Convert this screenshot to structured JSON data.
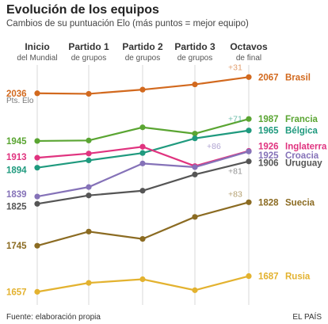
{
  "chart_data": {
    "type": "line",
    "title": "Evolución de los equipos",
    "subtitle": "Cambios de su puntuación Elo (más puntos = mejor equipo)",
    "x_stages": [
      {
        "main": "Inicio",
        "sub": "del Mundial"
      },
      {
        "main": "Partido 1",
        "sub": "de grupos"
      },
      {
        "main": "Partido 2",
        "sub": "de grupos"
      },
      {
        "main": "Partido 3",
        "sub": "de grupos"
      },
      {
        "main": "Octavos",
        "sub": "de final"
      }
    ],
    "y_unit_label": "Pts. Elo",
    "ylim": [
      1650,
      2075
    ],
    "grid": false,
    "series": [
      {
        "name": "Brasil",
        "color": "#d2691e",
        "values": [
          2036,
          2035,
          2043,
          2053,
          2067
        ],
        "start_label": "2036",
        "end_label": "2067",
        "gain_label": "+31"
      },
      {
        "name": "Francia",
        "color": "#5aa532",
        "values": [
          1945,
          1946,
          1971,
          1959,
          1987
        ],
        "start_label": "1945",
        "end_label": "1987",
        "gain_label": ""
      },
      {
        "name": "Bélgica",
        "color": "#1f9a7e",
        "values": [
          1894,
          1908,
          1922,
          1950,
          1965
        ],
        "start_label": "1894",
        "end_label": "1965",
        "gain_label": "+71"
      },
      {
        "name": "Inglaterra",
        "color": "#e0337f",
        "values": [
          1913,
          1921,
          1934,
          1897,
          1926
        ],
        "start_label": "1913",
        "end_label": "1926",
        "gain_label": ""
      },
      {
        "name": "Croacia",
        "color": "#8572b8",
        "values": [
          1839,
          1857,
          1902,
          1895,
          1925
        ],
        "start_label": "1839",
        "end_label": "1925",
        "gain_label": "+86"
      },
      {
        "name": "Uruguay",
        "color": "#555555",
        "values": [
          1825,
          1841,
          1850,
          1881,
          1906
        ],
        "start_label": "1825",
        "end_label": "1906",
        "gain_label": "+81"
      },
      {
        "name": "Suecia",
        "color": "#8b6b22",
        "values": [
          1745,
          1772,
          1758,
          1800,
          1828
        ],
        "start_label": "1745",
        "end_label": "1828",
        "gain_label": "+83"
      },
      {
        "name": "Rusia",
        "color": "#e3b22f",
        "values": [
          1657,
          1674,
          1681,
          1660,
          1687
        ],
        "start_label": "1657",
        "end_label": "1687",
        "gain_label": ""
      }
    ],
    "footer_source": "Fuente: elaboración propia",
    "footer_brand": "EL PAÍS"
  }
}
